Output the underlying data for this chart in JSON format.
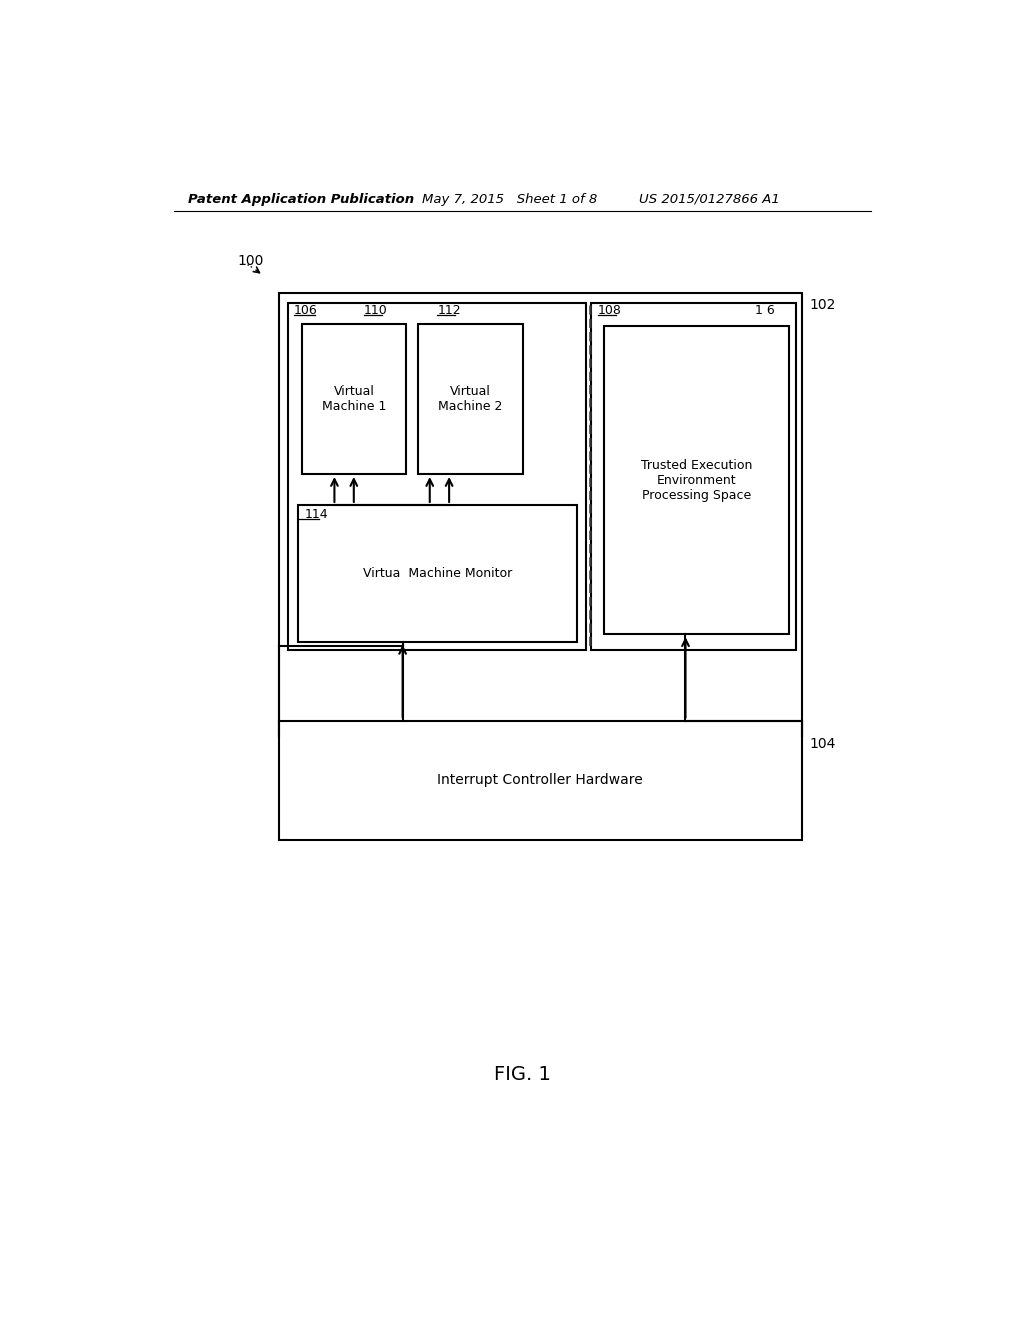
{
  "bg_color": "#ffffff",
  "header_left": "Patent Application Publication",
  "header_mid": "May 7, 2015   Sheet 1 of 8",
  "header_right": "US 2015/0127866 A1",
  "fig_label": "FIG. 1",
  "label_100": "100",
  "label_102": "102",
  "label_104": "104",
  "label_106": "106",
  "label_108": "108",
  "label_110": "110",
  "label_112": "112",
  "label_114": "114",
  "label_116": "1 6",
  "text_vm1": "Virtual\nMachine 1",
  "text_vm2": "Virtual\nMachine 2",
  "text_vmm": "Virtua  Machine Monitor",
  "text_tee": "Trusted Execution\nEnvironment\nProcessing Space",
  "text_ich": "Interrupt Controller Hardware"
}
